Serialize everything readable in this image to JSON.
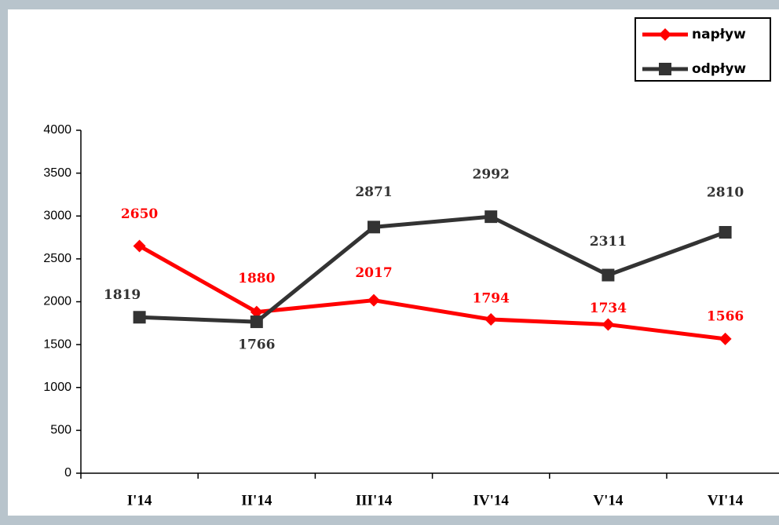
{
  "chart_data": {
    "type": "line",
    "categories": [
      "I'14",
      "II'14",
      "III'14",
      "IV'14",
      "V'14",
      "VI'14"
    ],
    "series": [
      {
        "name": "napływ",
        "color": "#ff0000",
        "marker": "diamond",
        "values": [
          2650,
          1880,
          2017,
          1794,
          1734,
          1566
        ]
      },
      {
        "name": "odpływ",
        "color": "#333333",
        "marker": "square",
        "values": [
          1819,
          1766,
          2871,
          2992,
          2311,
          2810
        ]
      }
    ],
    "ylim": [
      0,
      4000
    ],
    "yticks": [
      0,
      500,
      1000,
      1500,
      2000,
      2500,
      3000,
      3500,
      4000
    ],
    "legend": "top-right"
  }
}
